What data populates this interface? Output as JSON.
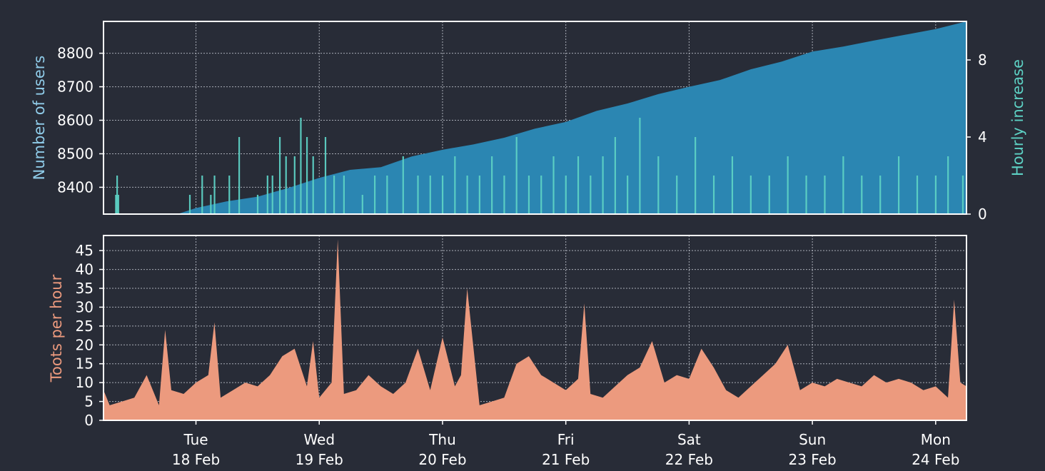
{
  "colors": {
    "background": "#282c37",
    "frame": "#ffffff",
    "grid": "#c9cdd6",
    "tick_text": "#ffffff",
    "users_area": "#2b86b2",
    "users_label": "#8fcbe8",
    "hourly_bars": "#5dd1c4",
    "hourly_label": "#5dd1c4",
    "toots_area": "#ec9a7e",
    "toots_label": "#ec9a7e"
  },
  "x_axis": {
    "ticks": [
      {
        "day": "Tue",
        "date": "18 Feb",
        "x": 1.0
      },
      {
        "day": "Wed",
        "date": "19 Feb",
        "x": 2.0
      },
      {
        "day": "Thu",
        "date": "20 Feb",
        "x": 3.0
      },
      {
        "day": "Fri",
        "date": "21 Feb",
        "x": 4.0
      },
      {
        "day": "Sat",
        "date": "22 Feb",
        "x": 5.0
      },
      {
        "day": "Sun",
        "date": "23 Feb",
        "x": 6.0
      },
      {
        "day": "Mon",
        "date": "24 Feb",
        "x": 7.0
      }
    ],
    "range_days": [
      0.25,
      7.25
    ]
  },
  "chart_data": [
    {
      "type": "area",
      "ylabel": "Number of users",
      "ylim": [
        8320,
        8895
      ],
      "yticks": [
        8400,
        8500,
        8600,
        8700,
        8800
      ],
      "grid": true,
      "x": [
        0.25,
        0.55,
        0.85,
        1.0,
        1.25,
        1.5,
        1.75,
        2.0,
        2.25,
        2.5,
        2.75,
        3.0,
        3.25,
        3.5,
        3.75,
        4.0,
        4.25,
        4.5,
        4.75,
        5.0,
        5.25,
        5.5,
        5.75,
        6.0,
        6.25,
        6.5,
        6.75,
        7.0,
        7.25
      ],
      "values": [
        8320,
        8320,
        8320,
        8338,
        8358,
        8372,
        8398,
        8428,
        8452,
        8460,
        8492,
        8512,
        8528,
        8548,
        8575,
        8595,
        8628,
        8650,
        8678,
        8700,
        8720,
        8752,
        8775,
        8805,
        8820,
        8838,
        8855,
        8872,
        8895
      ]
    },
    {
      "type": "bar",
      "ylabel": "Hourly increase",
      "ylim": [
        0,
        10
      ],
      "yticks": [
        0,
        4,
        8
      ],
      "x": [
        0.35,
        0.36,
        0.37,
        0.6,
        0.85,
        0.95,
        1.05,
        1.12,
        1.15,
        1.27,
        1.35,
        1.5,
        1.58,
        1.62,
        1.68,
        1.73,
        1.8,
        1.85,
        1.9,
        1.95,
        2.05,
        2.12,
        2.2,
        2.35,
        2.45,
        2.55,
        2.68,
        2.8,
        2.9,
        3.0,
        3.1,
        3.2,
        3.3,
        3.4,
        3.5,
        3.6,
        3.7,
        3.8,
        3.9,
        4.0,
        4.1,
        4.2,
        4.3,
        4.4,
        4.5,
        4.6,
        4.75,
        4.9,
        5.05,
        5.2,
        5.35,
        5.5,
        5.65,
        5.8,
        5.95,
        6.1,
        6.25,
        6.4,
        6.55,
        6.7,
        6.85,
        7.0,
        7.1,
        7.22
      ],
      "values": [
        1,
        2,
        1,
        0,
        0,
        1,
        2,
        1,
        2,
        2,
        4,
        1,
        2,
        2,
        4,
        3,
        3,
        5,
        4,
        3,
        4,
        2,
        2,
        1,
        2,
        2,
        3,
        2,
        2,
        2,
        3,
        2,
        2,
        3,
        2,
        4,
        2,
        2,
        3,
        2,
        3,
        2,
        3,
        4,
        2,
        5,
        3,
        2,
        4,
        2,
        3,
        2,
        2,
        3,
        2,
        2,
        3,
        2,
        2,
        3,
        2,
        2,
        3,
        2
      ]
    },
    {
      "type": "area",
      "ylabel": "Toots per hour",
      "ylim": [
        0,
        49
      ],
      "yticks": [
        0,
        5,
        10,
        15,
        20,
        25,
        30,
        35,
        40,
        45
      ],
      "grid": true,
      "x": [
        0.25,
        0.3,
        0.4,
        0.5,
        0.6,
        0.7,
        0.75,
        0.8,
        0.9,
        1.0,
        1.1,
        1.15,
        1.2,
        1.3,
        1.4,
        1.5,
        1.6,
        1.7,
        1.8,
        1.9,
        1.95,
        2.0,
        2.1,
        2.15,
        2.2,
        2.3,
        2.4,
        2.5,
        2.6,
        2.7,
        2.8,
        2.9,
        3.0,
        3.1,
        3.15,
        3.2,
        3.3,
        3.4,
        3.5,
        3.6,
        3.7,
        3.8,
        3.9,
        4.0,
        4.1,
        4.15,
        4.2,
        4.3,
        4.4,
        4.5,
        4.6,
        4.7,
        4.8,
        4.9,
        5.0,
        5.1,
        5.2,
        5.3,
        5.4,
        5.5,
        5.6,
        5.7,
        5.8,
        5.9,
        6.0,
        6.1,
        6.2,
        6.3,
        6.4,
        6.5,
        6.6,
        6.7,
        6.8,
        6.9,
        7.0,
        7.1,
        7.15,
        7.2,
        7.25
      ],
      "values": [
        8,
        4,
        5,
        6,
        12,
        4,
        24,
        8,
        7,
        10,
        12,
        26,
        6,
        8,
        10,
        9,
        12,
        17,
        19,
        9,
        21,
        6,
        10,
        48,
        7,
        8,
        12,
        9,
        7,
        10,
        19,
        8,
        22,
        9,
        12,
        35,
        4,
        5,
        6,
        15,
        17,
        12,
        10,
        8,
        11,
        31,
        7,
        6,
        9,
        12,
        14,
        21,
        10,
        12,
        11,
        19,
        14,
        8,
        6,
        9,
        12,
        15,
        20,
        8,
        10,
        9,
        11,
        10,
        9,
        12,
        10,
        11,
        10,
        8,
        9,
        6,
        32,
        10,
        9
      ]
    }
  ]
}
